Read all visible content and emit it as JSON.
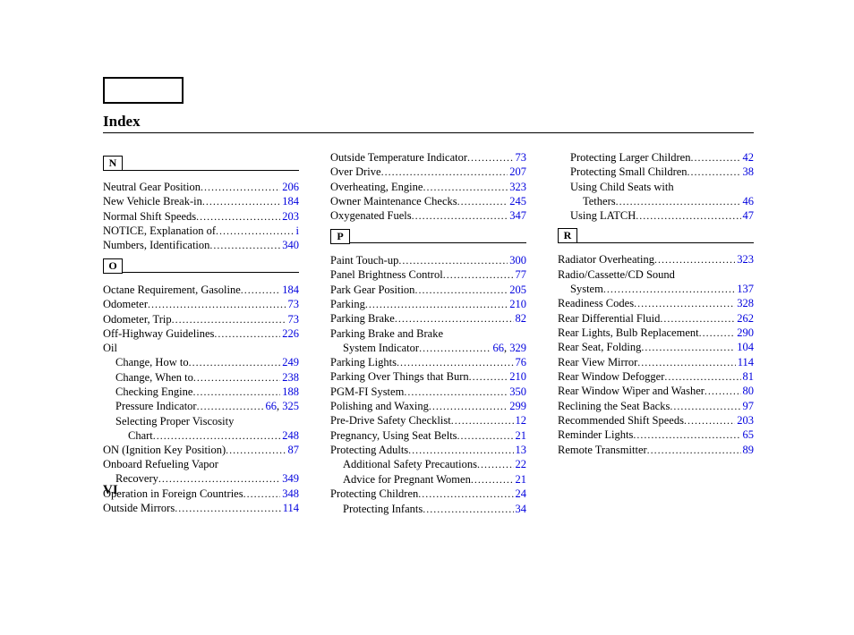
{
  "title": "Index",
  "page_number": "VI",
  "link_color": "#0000dd",
  "text_color": "#000000",
  "background_color": "#ffffff",
  "font_family": "Times New Roman",
  "font_size_pt": 12.5,
  "columns": [
    {
      "groups": [
        {
          "letter": "N",
          "entries": [
            {
              "label": "Neutral Gear Position",
              "indent": 0,
              "pages": [
                "206"
              ]
            },
            {
              "label": "New Vehicle Break-in",
              "indent": 0,
              "pages": [
                "184"
              ]
            },
            {
              "label": "Normal Shift Speeds",
              "indent": 0,
              "pages": [
                "203"
              ]
            },
            {
              "label": "NOTICE, Explanation of",
              "indent": 0,
              "pages": [
                "i"
              ]
            },
            {
              "label": "Numbers, Identification",
              "indent": 0,
              "pages": [
                "340"
              ]
            }
          ]
        },
        {
          "letter": "O",
          "entries": [
            {
              "label": "Octane Requirement, Gasoline",
              "indent": 0,
              "pages": [
                "184"
              ]
            },
            {
              "label": "Odometer",
              "indent": 0,
              "pages": [
                "73"
              ]
            },
            {
              "label": "Odometer, Trip",
              "indent": 0,
              "pages": [
                "73"
              ]
            },
            {
              "label": "Off-Highway Guidelines",
              "indent": 0,
              "pages": [
                "226"
              ]
            },
            {
              "label": "Oil",
              "indent": 0,
              "pages": []
            },
            {
              "label": "Change, How to",
              "indent": 1,
              "pages": [
                "249"
              ]
            },
            {
              "label": "Change, When to",
              "indent": 1,
              "pages": [
                "238"
              ]
            },
            {
              "label": "Checking Engine",
              "indent": 1,
              "pages": [
                "188"
              ]
            },
            {
              "label": "Pressure Indicator",
              "indent": 1,
              "pages": [
                "66",
                "325"
              ]
            },
            {
              "label": "Selecting Proper Viscosity",
              "indent": 1,
              "pages": []
            },
            {
              "label": "Chart",
              "indent": 2,
              "pages": [
                "248"
              ]
            },
            {
              "label": "ON (Ignition Key Position)",
              "indent": 0,
              "pages": [
                "87"
              ]
            },
            {
              "label": "Onboard Refueling Vapor",
              "indent": 0,
              "pages": []
            },
            {
              "label": "Recovery",
              "indent": 1,
              "pages": [
                "349"
              ]
            },
            {
              "label": "Operation in Foreign Countries",
              "indent": 0,
              "pages": [
                "348"
              ]
            },
            {
              "label": "Outside Mirrors",
              "indent": 0,
              "pages": [
                "114"
              ]
            }
          ]
        }
      ]
    },
    {
      "groups": [
        {
          "letter": "",
          "entries": [
            {
              "label": "Outside Temperature Indicator",
              "indent": 0,
              "pages": [
                "73"
              ]
            },
            {
              "label": "Over Drive",
              "indent": 0,
              "pages": [
                "207"
              ]
            },
            {
              "label": "Overheating, Engine",
              "indent": 0,
              "pages": [
                "323"
              ]
            },
            {
              "label": "Owner Maintenance Checks",
              "indent": 0,
              "pages": [
                "245"
              ]
            },
            {
              "label": "Oxygenated Fuels",
              "indent": 0,
              "pages": [
                "347"
              ]
            }
          ]
        },
        {
          "letter": "P",
          "entries": [
            {
              "label": "Paint Touch-up",
              "indent": 0,
              "pages": [
                "300"
              ]
            },
            {
              "label": "Panel Brightness Control",
              "indent": 0,
              "pages": [
                "77"
              ]
            },
            {
              "label": "Park Gear Position",
              "indent": 0,
              "pages": [
                "205"
              ]
            },
            {
              "label": "Parking",
              "indent": 0,
              "pages": [
                "210"
              ]
            },
            {
              "label": "Parking Brake",
              "indent": 0,
              "pages": [
                "82"
              ]
            },
            {
              "label": "Parking Brake and Brake",
              "indent": 0,
              "pages": []
            },
            {
              "label": "System Indicator",
              "indent": 1,
              "pages": [
                "66",
                "329"
              ]
            },
            {
              "label": "Parking Lights",
              "indent": 0,
              "pages": [
                "76"
              ]
            },
            {
              "label": "Parking Over Things that Burn",
              "indent": 0,
              "pages": [
                "210"
              ]
            },
            {
              "label": "PGM-FI System",
              "indent": 0,
              "pages": [
                "350"
              ]
            },
            {
              "label": "Polishing and Waxing",
              "indent": 0,
              "pages": [
                "299"
              ]
            },
            {
              "label": "Pre-Drive Safety Checklist",
              "indent": 0,
              "pages": [
                "12"
              ]
            },
            {
              "label": "Pregnancy, Using Seat Belts",
              "indent": 0,
              "pages": [
                "21"
              ]
            },
            {
              "label": "Protecting Adults",
              "indent": 0,
              "pages": [
                "13"
              ]
            },
            {
              "label": "Additional Safety Precautions",
              "indent": 1,
              "pages": [
                "22"
              ]
            },
            {
              "label": "Advice for Pregnant Women",
              "indent": 1,
              "pages": [
                "21"
              ]
            },
            {
              "label": "Protecting Children",
              "indent": 0,
              "pages": [
                "24"
              ]
            },
            {
              "label": "Protecting Infants",
              "indent": 1,
              "pages": [
                "34"
              ]
            }
          ]
        }
      ]
    },
    {
      "groups": [
        {
          "letter": "",
          "entries": [
            {
              "label": "Protecting Larger Children",
              "indent": 1,
              "pages": [
                "42"
              ]
            },
            {
              "label": "Protecting Small Children",
              "indent": 1,
              "pages": [
                "38"
              ]
            },
            {
              "label": "Using Child Seats with",
              "indent": 1,
              "pages": []
            },
            {
              "label": "Tethers",
              "indent": 2,
              "pages": [
                "46"
              ]
            },
            {
              "label": "Using LATCH",
              "indent": 1,
              "pages": [
                "47"
              ]
            }
          ]
        },
        {
          "letter": "R",
          "entries": [
            {
              "label": "Radiator Overheating",
              "indent": 0,
              "pages": [
                "323"
              ]
            },
            {
              "label": "Radio/Cassette/CD Sound",
              "indent": 0,
              "pages": []
            },
            {
              "label": "System",
              "indent": 1,
              "pages": [
                "137"
              ]
            },
            {
              "label": "Readiness Codes",
              "indent": 0,
              "pages": [
                "328"
              ]
            },
            {
              "label": "Rear Differential Fluid",
              "indent": 0,
              "pages": [
                "262"
              ]
            },
            {
              "label": "Rear Lights, Bulb Replacement",
              "indent": 0,
              "pages": [
                "290"
              ]
            },
            {
              "label": "Rear Seat, Folding",
              "indent": 0,
              "pages": [
                "104"
              ]
            },
            {
              "label": "Rear View Mirror",
              "indent": 0,
              "pages": [
                "114"
              ]
            },
            {
              "label": "Rear Window Defogger",
              "indent": 0,
              "pages": [
                "81"
              ]
            },
            {
              "label": "Rear Window Wiper and Washer",
              "indent": 0,
              "pages": [
                "80"
              ]
            },
            {
              "label": "Reclining the Seat Backs",
              "indent": 0,
              "pages": [
                "97"
              ]
            },
            {
              "label": "Recommended Shift Speeds",
              "indent": 0,
              "pages": [
                "203"
              ]
            },
            {
              "label": "Reminder Lights",
              "indent": 0,
              "pages": [
                "65"
              ]
            },
            {
              "label": "Remote Transmitter",
              "indent": 0,
              "pages": [
                "89"
              ]
            }
          ]
        }
      ]
    }
  ]
}
